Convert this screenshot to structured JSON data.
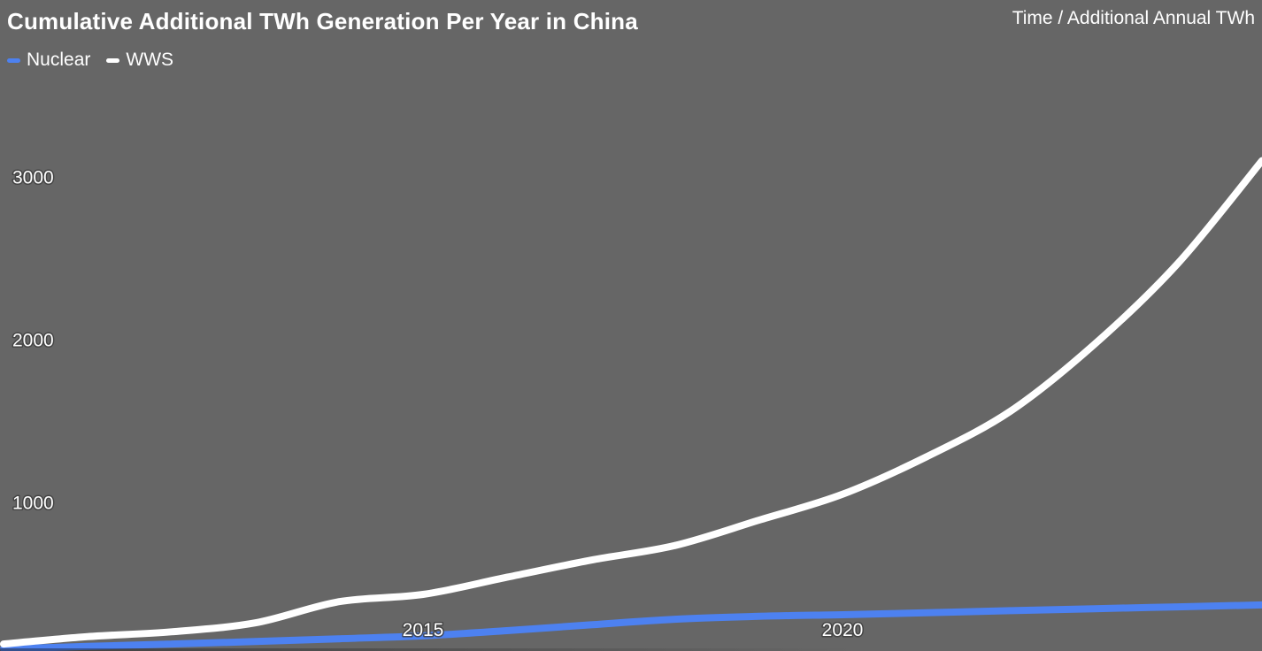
{
  "title": "Cumulative Additional TWh Generation Per Year in China",
  "axis_note": "Time / Additional Annual TWh",
  "legend": {
    "items": [
      {
        "label": "Nuclear",
        "color": "#4d81f0"
      },
      {
        "label": "WWS",
        "color": "#ffffff"
      }
    ]
  },
  "colors": {
    "background": "#666666",
    "text": "#ffffff",
    "nuclear": "#4d81f0",
    "wws": "#ffffff",
    "tick_halo": "#3e3e3e"
  },
  "chart_data": {
    "type": "line",
    "title": "Cumulative Additional TWh Generation Per Year in China",
    "xlabel": "Time",
    "ylabel": "Additional Annual TWh",
    "x": [
      2010,
      2011,
      2012,
      2013,
      2014,
      2015,
      2016,
      2017,
      2018,
      2019,
      2020,
      2021,
      2022,
      2023,
      2024,
      2025
    ],
    "series": [
      {
        "name": "Nuclear",
        "color": "#4d81f0",
        "values": [
          100,
          115,
          130,
          145,
          162,
          180,
          212,
          248,
          282,
          300,
          310,
          322,
          335,
          347,
          358,
          370
        ]
      },
      {
        "name": "WWS",
        "color": "#ffffff",
        "values": [
          130,
          175,
          205,
          260,
          390,
          435,
          540,
          645,
          735,
          890,
          1050,
          1280,
          1560,
          1970,
          2470,
          3100
        ]
      }
    ],
    "x_ticks": [
      2015,
      2020
    ],
    "y_ticks": [
      1000,
      2000,
      3000
    ],
    "xlim": [
      2010,
      2025
    ],
    "ylim": [
      85,
      4090
    ],
    "grid": false,
    "legend_position": "top-left",
    "line_width": 8
  }
}
